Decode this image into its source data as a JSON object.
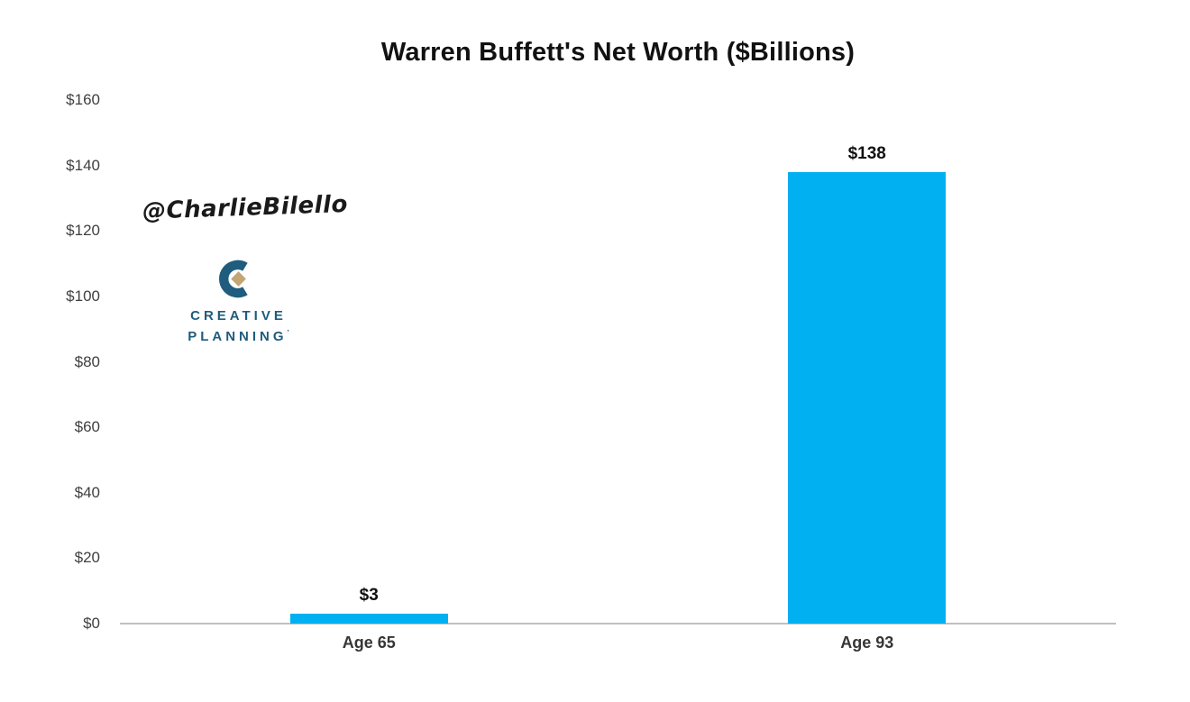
{
  "page": {
    "background": "#ffffff"
  },
  "chart_data": {
    "type": "bar",
    "title": "Warren Buffett's Net Worth ($Billions)",
    "categories": [
      "Age 65",
      "Age 93"
    ],
    "values": [
      3,
      138
    ],
    "value_labels": [
      "$3",
      "$138"
    ],
    "yticks": [
      0,
      20,
      40,
      60,
      80,
      100,
      120,
      140,
      160
    ],
    "ytick_labels": [
      "$0",
      "$20",
      "$40",
      "$60",
      "$80",
      "$100",
      "$120",
      "$140",
      "$160"
    ],
    "ylim": [
      0,
      160
    ],
    "xlabel": "",
    "ylabel": "",
    "grid": false,
    "legend": "none",
    "bar_color": "#00b0f0",
    "axis_line_color": "#c0c0c0",
    "tick_label_color": "#404040"
  },
  "watermark": {
    "handle": "@CharlieBilello"
  },
  "logo": {
    "line1": "CREATIVE",
    "line2": "PLANNING",
    "reg_mark": "’",
    "c_color": "#1f5c7e",
    "diamond_color": "#c2a673",
    "text_color": "#1f5c7e"
  }
}
